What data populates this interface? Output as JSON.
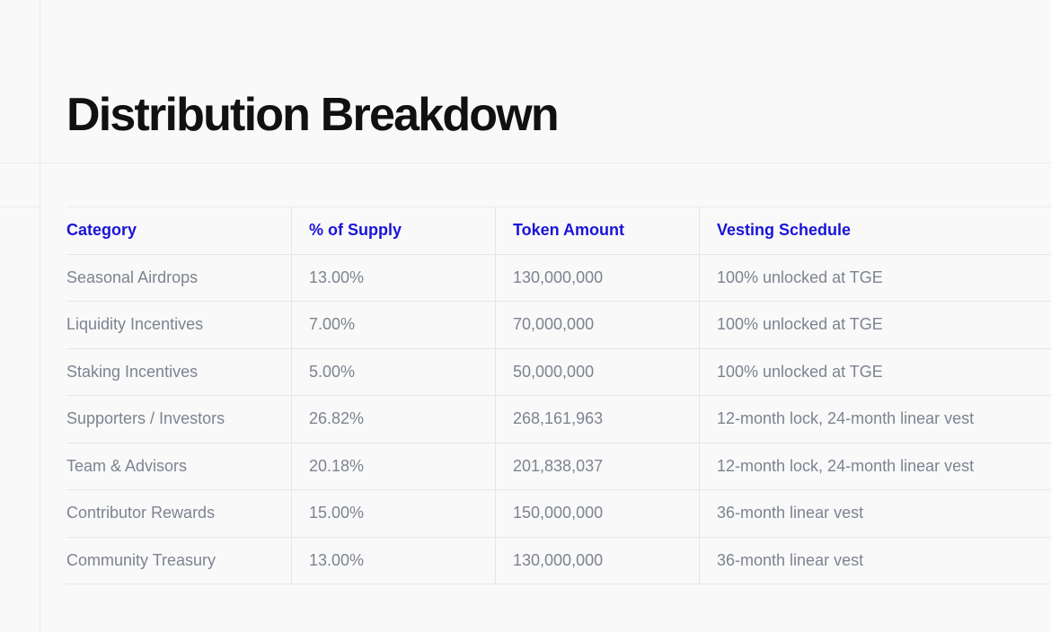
{
  "page": {
    "title": "Distribution Breakdown"
  },
  "table": {
    "headers": [
      "Category",
      "% of Supply",
      "Token Amount",
      "Vesting Schedule"
    ],
    "rows": [
      [
        "Seasonal Airdrops",
        "13.00%",
        "130,000,000",
        "100% unlocked at TGE"
      ],
      [
        "Liquidity Incentives",
        "7.00%",
        "70,000,000",
        "100% unlocked at TGE"
      ],
      [
        "Staking Incentives",
        "5.00%",
        "50,000,000",
        "100% unlocked at TGE"
      ],
      [
        "Supporters / Investors",
        "26.82%",
        "268,161,963",
        "12-month lock, 24-month linear vest"
      ],
      [
        "Team & Advisors",
        "20.18%",
        "201,838,037",
        "12-month lock, 24-month linear vest"
      ],
      [
        "Contributor Rewards",
        "15.00%",
        "150,000,000",
        "36-month linear vest"
      ],
      [
        "Community Treasury",
        "13.00%",
        "130,000,000",
        "36-month linear vest"
      ]
    ]
  },
  "colors": {
    "header_text": "#1a14d6",
    "body_text": "#7d8390",
    "title_text": "#111111",
    "background": "#f9f9f9"
  }
}
